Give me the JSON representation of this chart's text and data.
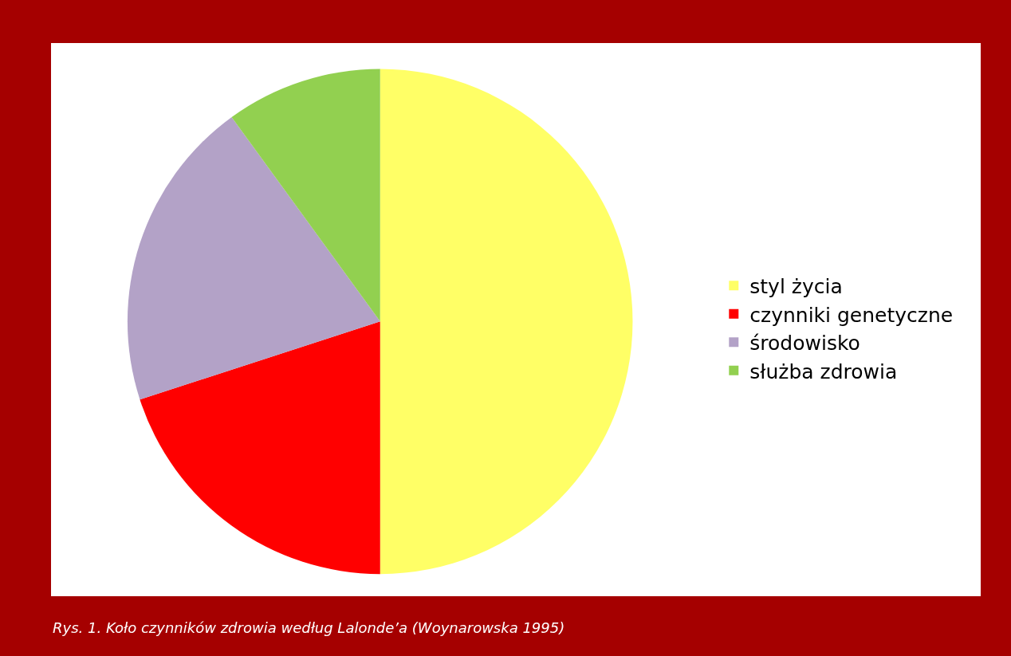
{
  "chart_data": {
    "type": "pie",
    "categories": [
      "styl życia",
      "czynniki genetyczne",
      "środowisko",
      "służba zdrowia"
    ],
    "values": [
      50,
      20,
      20,
      10
    ],
    "colors": [
      "#ffff66",
      "#ff0000",
      "#b3a2c7",
      "#92d050"
    ],
    "legend": "right",
    "annotations": [
      "Rys. 1. Koło czynników zdrowia według Lalonde’a (Woynarowska 1995)"
    ]
  }
}
